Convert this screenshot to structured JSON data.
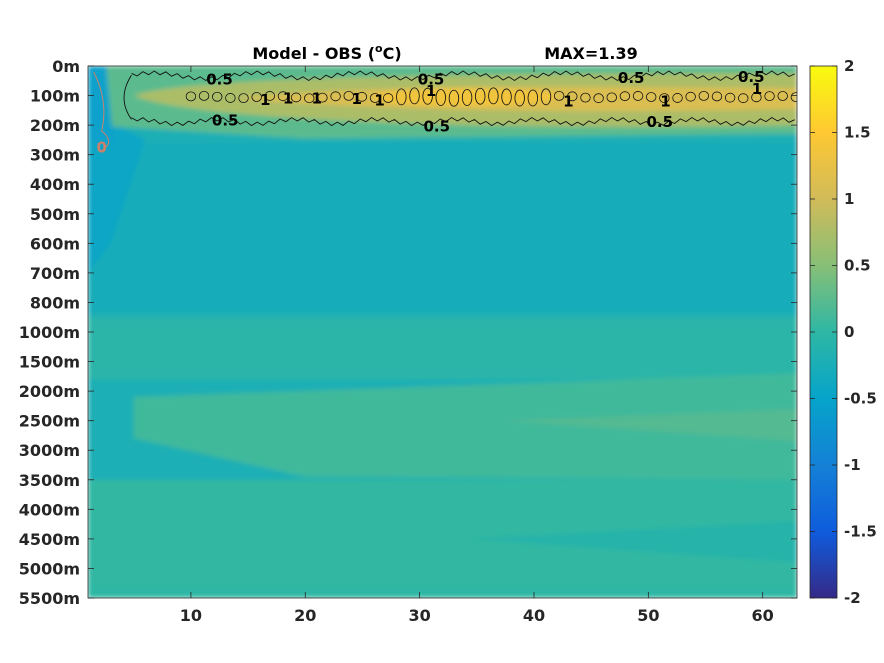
{
  "chart_data": {
    "type": "heatmap",
    "title": "Model - OBS (°C)",
    "title_parts": {
      "main": "Model - OBS (",
      "sup": "o",
      "tail": "C)"
    },
    "max_label": "MAX=1.39",
    "xlabel": "",
    "ylabel": "",
    "x_range": [
      1,
      63
    ],
    "x_ticks": [
      10,
      20,
      30,
      40,
      50,
      60
    ],
    "y_tick_labels": [
      "0m",
      "100m",
      "200m",
      "300m",
      "400m",
      "500m",
      "600m",
      "700m",
      "800m",
      "1000m",
      "1500m",
      "2000m",
      "2500m",
      "3000m",
      "3500m",
      "4000m",
      "4500m",
      "5000m",
      "5500m"
    ],
    "colorbar": {
      "range": [
        -2,
        2
      ],
      "ticks": [
        "2",
        "1.5",
        "1",
        "0.5",
        "0",
        "-0.5",
        "-1",
        "-1.5",
        "-2"
      ],
      "colormap": "parula"
    },
    "contour_levels": [
      0.5,
      1
    ],
    "contour_labels": [
      {
        "text": "0.5",
        "x": 12.5,
        "depth_index": 0.45
      },
      {
        "text": "0.5",
        "x": 31,
        "depth_index": 0.45
      },
      {
        "text": "0.5",
        "x": 48.5,
        "depth_index": 0.4
      },
      {
        "text": "0.5",
        "x": 59,
        "depth_index": 0.38
      },
      {
        "text": "0.5",
        "x": 13,
        "depth_index": 1.85
      },
      {
        "text": "0.5",
        "x": 31.5,
        "depth_index": 2.05
      },
      {
        "text": "0.5",
        "x": 51,
        "depth_index": 1.9
      },
      {
        "text": "1",
        "x": 16.5,
        "depth_index": 1.15
      },
      {
        "text": "1",
        "x": 18.5,
        "depth_index": 1.1
      },
      {
        "text": "1",
        "x": 21,
        "depth_index": 1.1
      },
      {
        "text": "1",
        "x": 24.5,
        "depth_index": 1.12
      },
      {
        "text": "1",
        "x": 26.5,
        "depth_index": 1.17
      },
      {
        "text": "1",
        "x": 31,
        "depth_index": 0.85
      },
      {
        "text": "1",
        "x": 43,
        "depth_index": 1.2
      },
      {
        "text": "1",
        "x": 51.5,
        "depth_index": 1.2
      },
      {
        "text": "1",
        "x": 59.5,
        "depth_index": 0.78
      },
      {
        "text": "0",
        "x": 2.2,
        "depth_index": 2.75
      }
    ],
    "field_summary": {
      "background_value": -0.15,
      "warm_band": {
        "depth_range": [
          "0m",
          "200m"
        ],
        "peak_value": 1.39,
        "peak_x": 33
      },
      "deep_bands": [
        {
          "depth_range": [
            "1500m",
            "3000m"
          ],
          "value": 0.15
        },
        {
          "depth_range": [
            "4000m",
            "5000m"
          ],
          "value": 0.05
        }
      ]
    }
  }
}
